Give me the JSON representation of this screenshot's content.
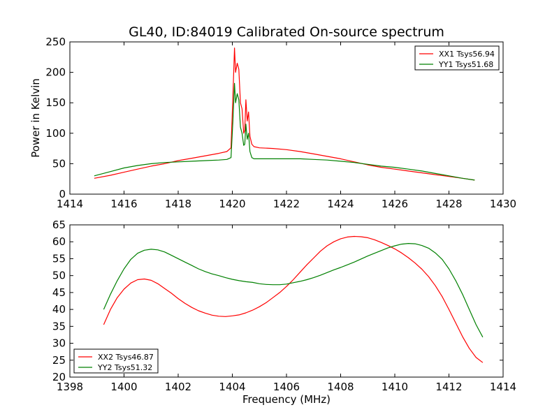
{
  "chart_data": [
    {
      "type": "line",
      "title": "GL40, ID:84019 Calibrated On-source spectrum",
      "xlabel": "",
      "ylabel": "Power in Kelvin",
      "xlim": [
        1414,
        1430
      ],
      "ylim": [
        0,
        250
      ],
      "xticks": [
        "1414",
        "1416",
        "1418",
        "1420",
        "1422",
        "1424",
        "1426",
        "1428",
        "1430"
      ],
      "yticks": [
        "0",
        "50",
        "100",
        "150",
        "200",
        "250"
      ],
      "legend_position": "top-right",
      "series": [
        {
          "name": "XX1 Tsys56.94",
          "color": "#ff0000",
          "x": [
            1414.9,
            1415.5,
            1416.0,
            1416.5,
            1417.0,
            1417.5,
            1418.0,
            1418.5,
            1419.0,
            1419.5,
            1419.8,
            1419.95,
            1420.02,
            1420.08,
            1420.12,
            1420.18,
            1420.24,
            1420.3,
            1420.36,
            1420.42,
            1420.46,
            1420.5,
            1420.55,
            1420.6,
            1420.65,
            1420.72,
            1420.8,
            1421.0,
            1421.5,
            1422.0,
            1422.5,
            1423.0,
            1423.5,
            1424.0,
            1424.5,
            1425.0,
            1425.5,
            1426.0,
            1426.5,
            1427.0,
            1427.5,
            1428.0,
            1428.5,
            1428.95
          ],
          "y": [
            26,
            31,
            36,
            41,
            46,
            50,
            55,
            59,
            63,
            67,
            70,
            76,
            160,
            240,
            200,
            215,
            205,
            150,
            140,
            100,
            105,
            155,
            120,
            135,
            95,
            82,
            78,
            76,
            75,
            73,
            70,
            66,
            62,
            58,
            53,
            48,
            44,
            41,
            38,
            35,
            32,
            29,
            26,
            23
          ]
        },
        {
          "name": "YY1 Tsys51.68",
          "color": "#008000",
          "x": [
            1414.9,
            1415.5,
            1416.0,
            1416.5,
            1417.0,
            1417.5,
            1418.0,
            1418.5,
            1419.0,
            1419.5,
            1419.8,
            1419.95,
            1420.02,
            1420.08,
            1420.12,
            1420.18,
            1420.24,
            1420.3,
            1420.36,
            1420.42,
            1420.46,
            1420.5,
            1420.55,
            1420.6,
            1420.65,
            1420.72,
            1420.8,
            1421.0,
            1421.5,
            1422.0,
            1422.5,
            1423.0,
            1423.5,
            1424.0,
            1424.5,
            1425.0,
            1425.5,
            1426.0,
            1426.5,
            1427.0,
            1427.5,
            1428.0,
            1428.5,
            1428.95
          ],
          "y": [
            30,
            37,
            43,
            47,
            50,
            52,
            53,
            54,
            55,
            56,
            57,
            60,
            120,
            182,
            150,
            165,
            155,
            110,
            100,
            80,
            82,
            115,
            90,
            100,
            70,
            60,
            58,
            58,
            58,
            58,
            58,
            57,
            56,
            54,
            52,
            49,
            46,
            44,
            41,
            38,
            34,
            30,
            26,
            23
          ]
        }
      ]
    },
    {
      "type": "line",
      "title": "",
      "xlabel": "Frequency (MHz)",
      "ylabel": "",
      "xlim": [
        1398,
        1414
      ],
      "ylim": [
        20,
        65
      ],
      "xticks": [
        "1398",
        "1400",
        "1402",
        "1404",
        "1406",
        "1408",
        "1410",
        "1412",
        "1414"
      ],
      "yticks": [
        "20",
        "25",
        "30",
        "35",
        "40",
        "45",
        "50",
        "55",
        "60",
        "65"
      ],
      "legend_position": "bottom-left",
      "series": [
        {
          "name": "XX2 Tsys46.87",
          "color": "#ff0000",
          "x": [
            1399.25,
            1399.5,
            1399.75,
            1400.0,
            1400.25,
            1400.5,
            1400.75,
            1401.0,
            1401.25,
            1401.5,
            1401.75,
            1402.0,
            1402.25,
            1402.5,
            1402.75,
            1403.0,
            1403.25,
            1403.5,
            1403.75,
            1404.0,
            1404.25,
            1404.5,
            1404.75,
            1405.0,
            1405.25,
            1405.5,
            1405.75,
            1406.0,
            1406.25,
            1406.5,
            1406.75,
            1407.0,
            1407.25,
            1407.5,
            1407.75,
            1408.0,
            1408.25,
            1408.5,
            1408.75,
            1409.0,
            1409.25,
            1409.5,
            1409.75,
            1410.0,
            1410.25,
            1410.5,
            1410.75,
            1411.0,
            1411.25,
            1411.5,
            1411.75,
            1412.0,
            1412.25,
            1412.5,
            1412.75,
            1413.0,
            1413.25
          ],
          "y": [
            35.5,
            40.0,
            43.5,
            46.0,
            47.8,
            48.8,
            49.0,
            48.6,
            47.6,
            46.2,
            44.8,
            43.2,
            41.8,
            40.6,
            39.6,
            38.9,
            38.3,
            38.0,
            37.9,
            38.1,
            38.4,
            39.0,
            39.8,
            40.8,
            42.0,
            43.5,
            45.0,
            46.8,
            48.8,
            51.0,
            53.2,
            55.2,
            57.2,
            58.8,
            60.0,
            60.9,
            61.4,
            61.6,
            61.5,
            61.2,
            60.6,
            59.8,
            58.9,
            57.9,
            56.7,
            55.3,
            53.7,
            51.9,
            49.7,
            47.0,
            43.8,
            40.0,
            36.0,
            32.0,
            28.5,
            25.8,
            24.3
          ]
        },
        {
          "name": "YY2 Tsys51.32",
          "color": "#008000",
          "x": [
            1399.25,
            1399.5,
            1399.75,
            1400.0,
            1400.25,
            1400.5,
            1400.75,
            1401.0,
            1401.25,
            1401.5,
            1401.75,
            1402.0,
            1402.25,
            1402.5,
            1402.75,
            1403.0,
            1403.25,
            1403.5,
            1403.75,
            1404.0,
            1404.25,
            1404.5,
            1404.75,
            1405.0,
            1405.25,
            1405.5,
            1405.75,
            1406.0,
            1406.25,
            1406.5,
            1406.75,
            1407.0,
            1407.25,
            1407.5,
            1407.75,
            1408.0,
            1408.25,
            1408.5,
            1408.75,
            1409.0,
            1409.25,
            1409.5,
            1409.75,
            1410.0,
            1410.25,
            1410.5,
            1410.75,
            1411.0,
            1411.25,
            1411.5,
            1411.75,
            1412.0,
            1412.25,
            1412.5,
            1412.75,
            1413.0,
            1413.25
          ],
          "y": [
            40.0,
            44.5,
            48.5,
            52.0,
            54.8,
            56.6,
            57.5,
            57.8,
            57.6,
            57.0,
            56.0,
            55.0,
            54.0,
            53.0,
            52.0,
            51.2,
            50.5,
            50.0,
            49.4,
            48.9,
            48.5,
            48.2,
            48.0,
            47.6,
            47.4,
            47.3,
            47.3,
            47.5,
            47.9,
            48.3,
            48.8,
            49.4,
            50.1,
            50.9,
            51.7,
            52.4,
            53.2,
            54.0,
            54.9,
            55.8,
            56.6,
            57.4,
            58.2,
            58.8,
            59.3,
            59.5,
            59.4,
            58.9,
            58.1,
            56.7,
            54.8,
            52.0,
            48.5,
            44.5,
            40.0,
            35.5,
            31.8
          ]
        }
      ]
    }
  ]
}
